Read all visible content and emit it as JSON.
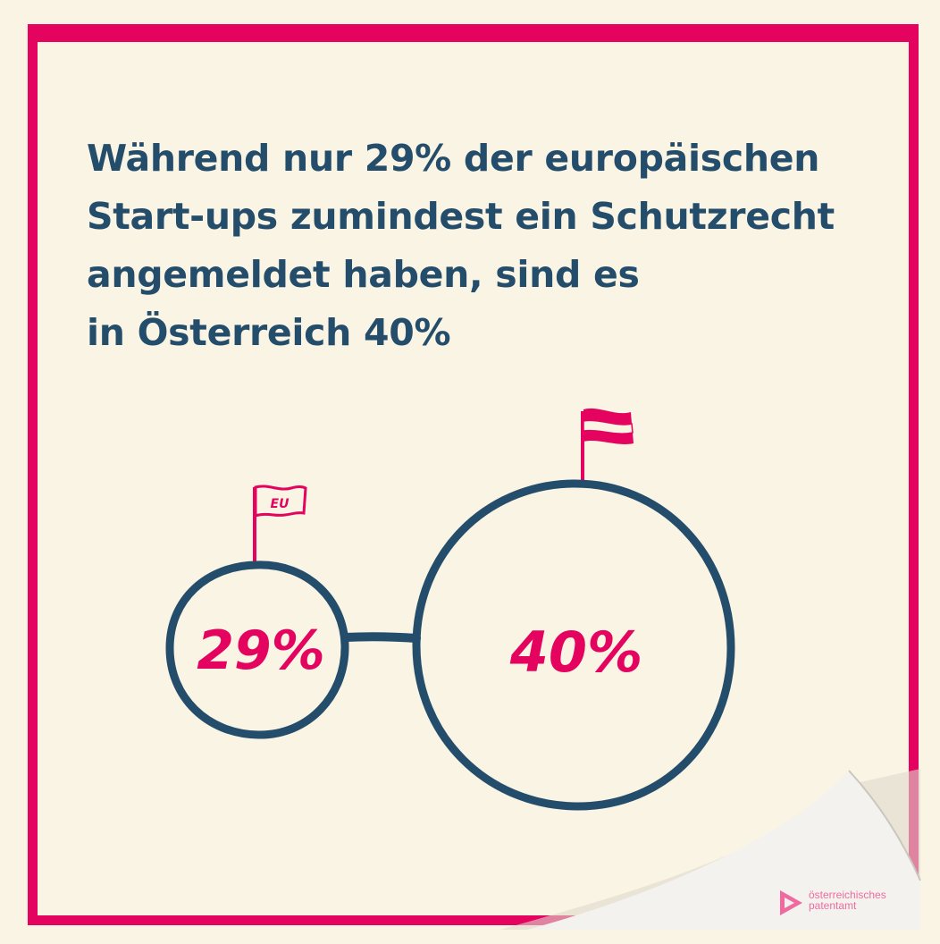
{
  "headline": {
    "line1": "Während nur 29% der europäischen",
    "line2": "Start-ups zumindest ein Schutzrecht",
    "line3": "angemeldet haben, sind es",
    "line4": "in Österreich 40%"
  },
  "eu_circle": {
    "label": "29%",
    "flag_label": "EU",
    "value_percent": 29
  },
  "austria_circle": {
    "label": "40%",
    "value_percent": 40
  },
  "logo": {
    "line1": "österreichisches",
    "line2": "patentamt"
  },
  "colors": {
    "accent": "#e4045f",
    "navy": "#244d6b",
    "background": "#f9f4e3"
  }
}
